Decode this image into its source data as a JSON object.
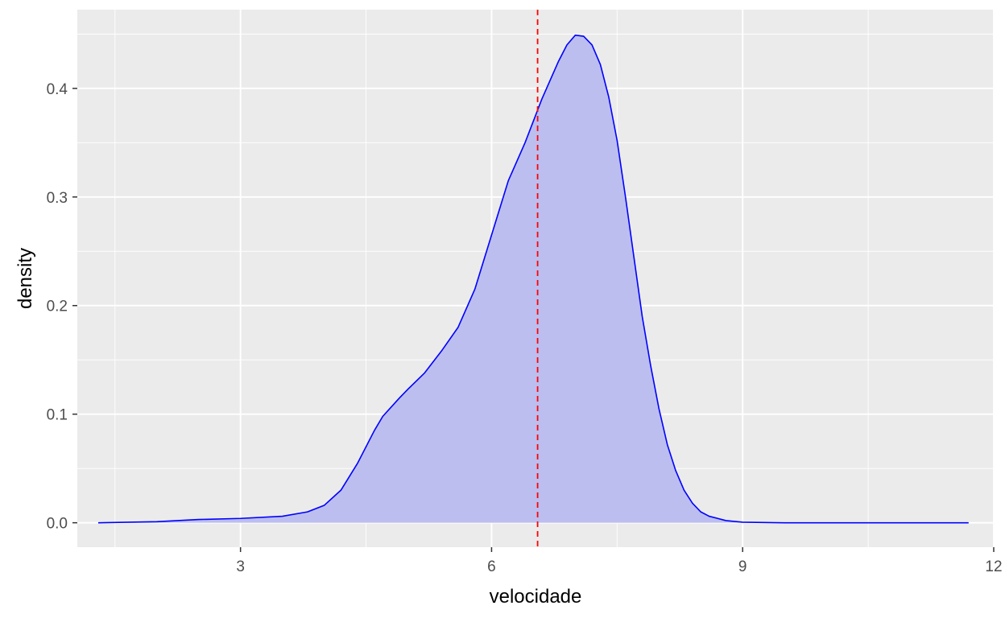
{
  "chart_data": {
    "type": "area",
    "title": "",
    "xlabel": "velocidade",
    "ylabel": "density",
    "xlim": [
      1.05,
      12.0
    ],
    "ylim": [
      -0.0225,
      0.4725
    ],
    "x_major_ticks": [
      3,
      6,
      9,
      12
    ],
    "y_major_ticks": [
      0.0,
      0.1,
      0.2,
      0.3,
      0.4
    ],
    "x_tick_labels": [
      "3",
      "6",
      "9",
      "12"
    ],
    "y_tick_labels": [
      "0.0",
      "0.1",
      "0.2",
      "0.3",
      "0.4"
    ],
    "grid": true,
    "legend": "none",
    "reference_line": {
      "x": 6.55,
      "style": "dashed",
      "color": "#ff0000"
    },
    "series": [
      {
        "fill": "#bcbef0",
        "line_color": "#0000ff",
        "x": [
          1.3,
          2.0,
          2.5,
          3.0,
          3.5,
          3.8,
          4.0,
          4.2,
          4.4,
          4.6,
          4.7,
          4.9,
          5.0,
          5.2,
          5.4,
          5.6,
          5.8,
          6.0,
          6.2,
          6.4,
          6.6,
          6.8,
          6.9,
          7.0,
          7.1,
          7.2,
          7.3,
          7.4,
          7.5,
          7.6,
          7.7,
          7.8,
          7.9,
          8.0,
          8.1,
          8.2,
          8.3,
          8.4,
          8.5,
          8.6,
          8.8,
          9.0,
          9.5,
          10.0,
          11.0,
          11.7
        ],
        "values": [
          0.0,
          0.001,
          0.003,
          0.004,
          0.006,
          0.01,
          0.016,
          0.03,
          0.055,
          0.085,
          0.098,
          0.115,
          0.123,
          0.138,
          0.158,
          0.18,
          0.215,
          0.265,
          0.315,
          0.35,
          0.39,
          0.425,
          0.44,
          0.449,
          0.448,
          0.44,
          0.422,
          0.392,
          0.352,
          0.3,
          0.245,
          0.19,
          0.145,
          0.105,
          0.072,
          0.048,
          0.03,
          0.018,
          0.01,
          0.006,
          0.002,
          0.0005,
          0.0,
          0.0,
          0.0,
          0.0
        ]
      }
    ]
  }
}
